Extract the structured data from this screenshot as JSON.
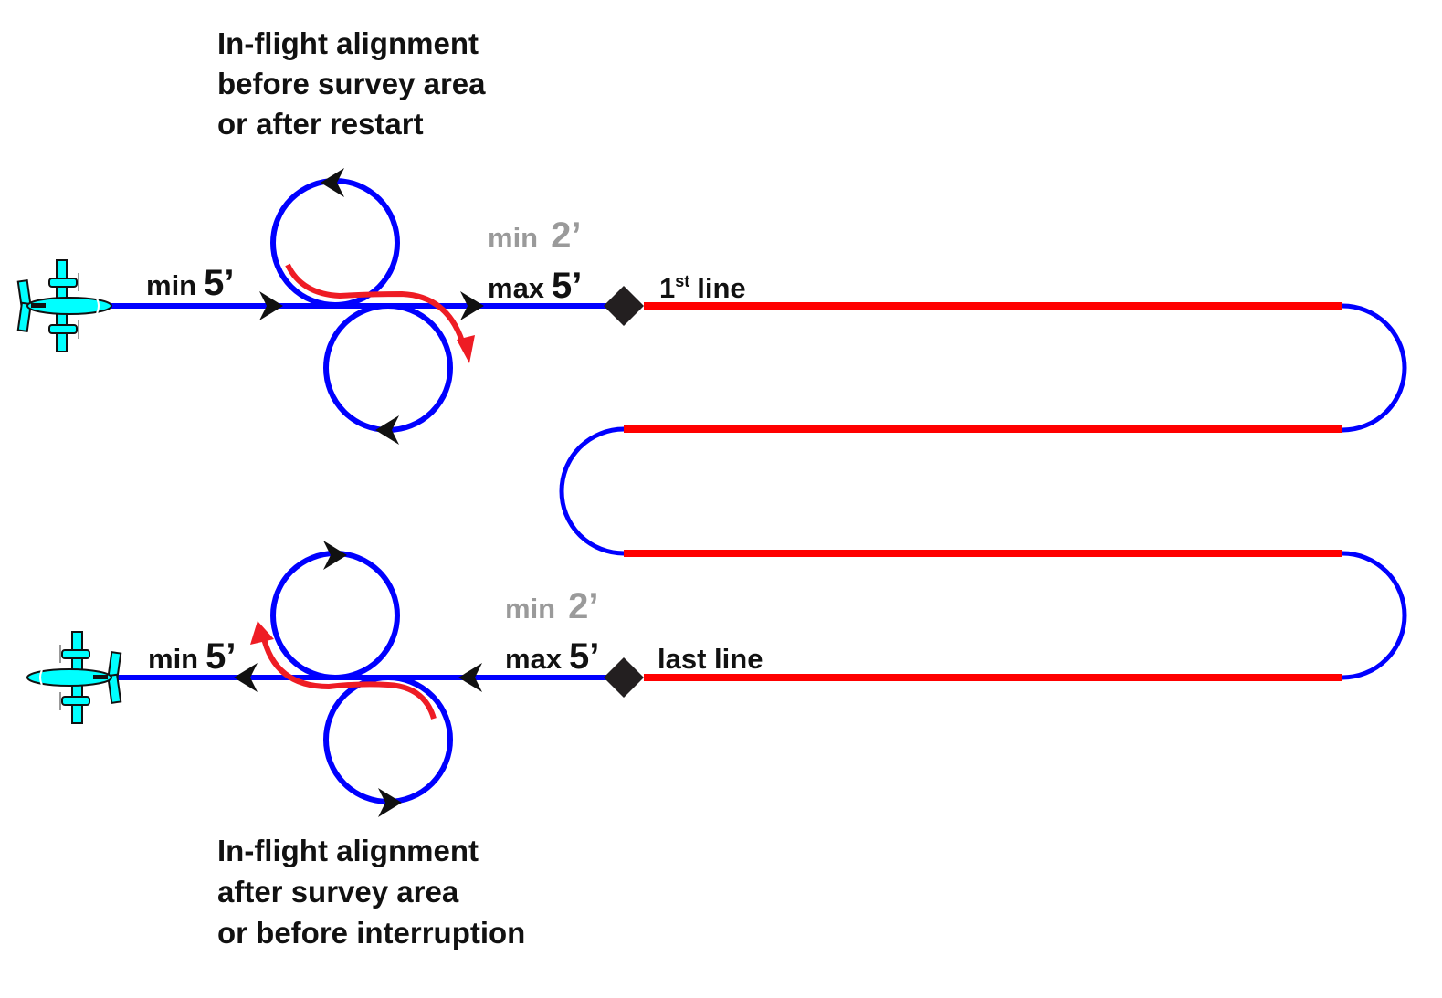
{
  "colors": {
    "transit": "#0000ff",
    "survey_line": "#ff0000",
    "alignment_arrow": "#ee1c24",
    "aircraft": "#00ffff",
    "waypoint": "#231f20",
    "secondary_text": "#9a9a9a"
  },
  "top": {
    "caption": [
      "In-flight alignment",
      "before survey area",
      "or after restart"
    ],
    "min_label": {
      "word": "min",
      "value": "5’"
    },
    "min2_label": {
      "word": "min",
      "value": "2’"
    },
    "max_label": {
      "word": "max",
      "value": "5’"
    },
    "line_label": {
      "num": "1",
      "sup": "st",
      "word": "line"
    }
  },
  "bottom": {
    "caption": [
      "In-flight alignment",
      "after survey area",
      "or before interruption"
    ],
    "min_label": {
      "word": "min",
      "value": "5’"
    },
    "min2_label": {
      "word": "min",
      "value": "2’"
    },
    "max_label": {
      "word": "max",
      "value": "5’"
    },
    "line_label": {
      "word": "last line"
    }
  },
  "icons": {
    "aircraft": "twin-prop-airplane-icon",
    "waypoint": "diamond-icon",
    "direction": "arrowhead-icon"
  }
}
